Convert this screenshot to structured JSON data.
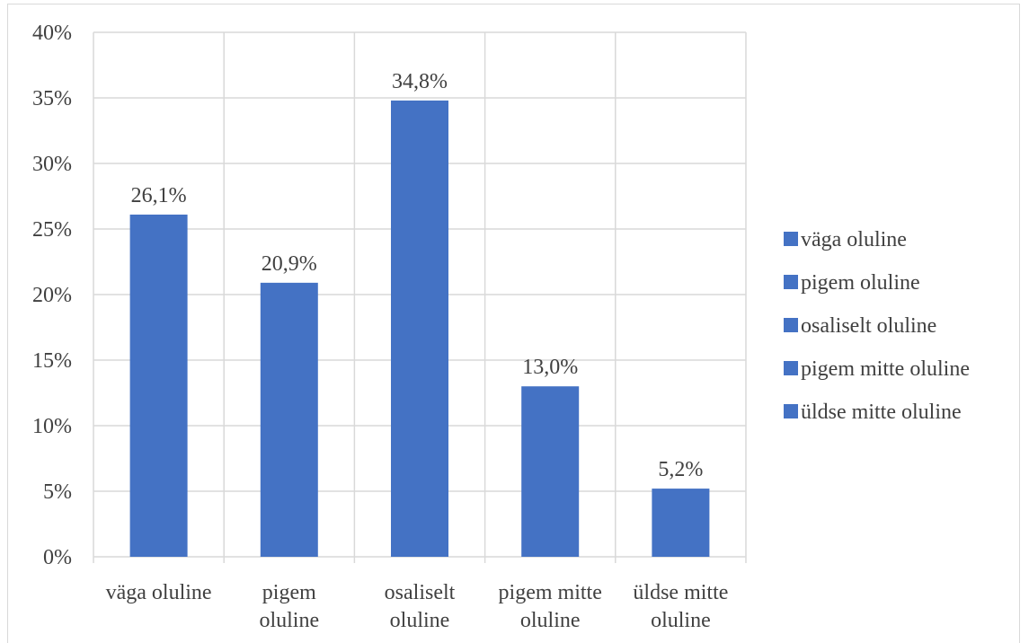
{
  "chart_data": {
    "type": "bar",
    "categories": [
      [
        "väga oluline"
      ],
      [
        "pigem",
        "oluline"
      ],
      [
        "osaliselt",
        "oluline"
      ],
      [
        "pigem mitte",
        "oluline"
      ],
      [
        "üldse mitte",
        "oluline"
      ]
    ],
    "values": [
      26.1,
      20.9,
      34.8,
      13.0,
      5.2
    ],
    "data_labels": [
      "26,1%",
      "20,9%",
      "34,8%",
      "13,0%",
      "5,2%"
    ],
    "ylim": [
      0,
      40
    ],
    "y_ticks": [
      0,
      5,
      10,
      15,
      20,
      25,
      30,
      35,
      40
    ],
    "y_tick_labels": [
      "0%",
      "5%",
      "10%",
      "15%",
      "20%",
      "25%",
      "30%",
      "35%",
      "40%"
    ],
    "grid": true,
    "legend": {
      "position": "right",
      "entries": [
        "väga oluline",
        "pigem oluline",
        "osaliselt oluline",
        "pigem mitte oluline",
        "üldse mitte oluline"
      ]
    },
    "colors": {
      "bar": "#4472C4",
      "grid": "#d9d9d9",
      "text": "#404040"
    }
  }
}
